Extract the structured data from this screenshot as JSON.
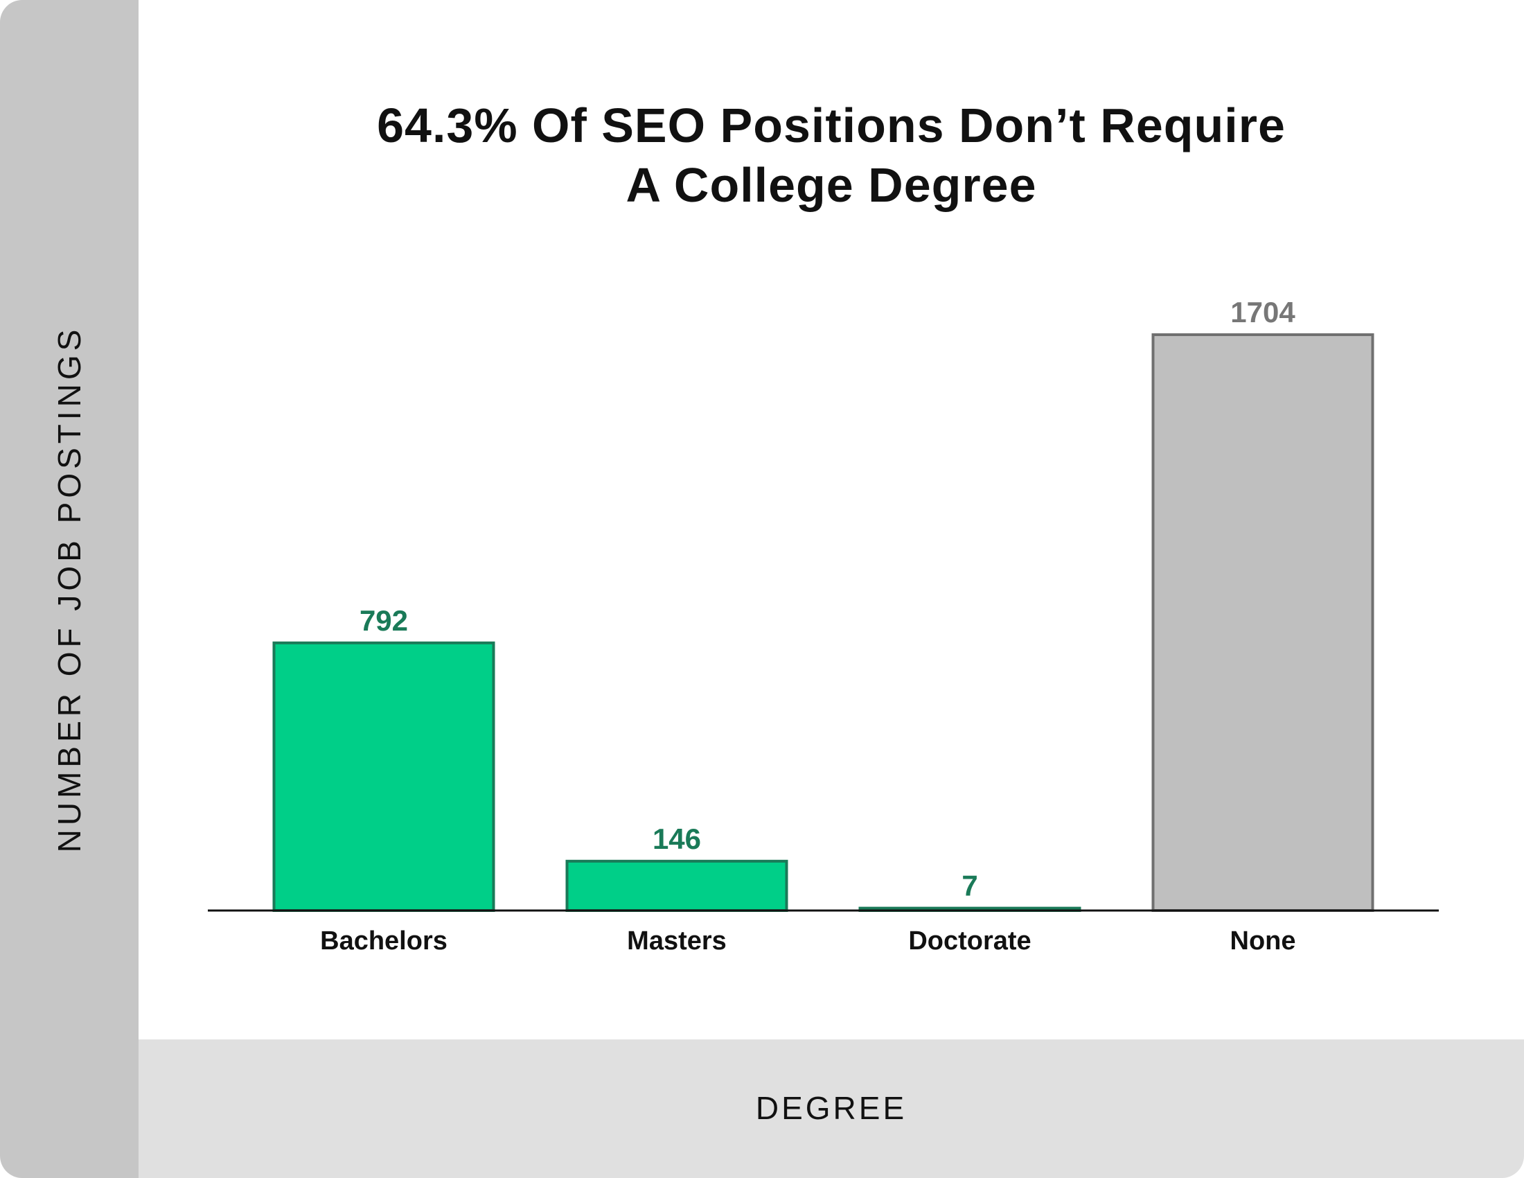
{
  "chart_data": {
    "type": "bar",
    "title_lines": [
      "64.3% Of SEO Positions Don’t Require",
      "A College Degree"
    ],
    "title": "64.3% Of SEO Positions Don’t Require A College Degree",
    "xlabel": "DEGREE",
    "ylabel": "NUMBER OF JOB POSTINGS",
    "categories": [
      "Bachelors",
      "Masters",
      "Doctorate",
      "None"
    ],
    "values": [
      792,
      146,
      7,
      1704
    ],
    "value_labels": [
      "792",
      "146",
      "7",
      "1704"
    ],
    "ylim": [
      0,
      1704
    ],
    "grid": false,
    "bar_colors": [
      "#00cf88",
      "#00cf88",
      "#00cf88",
      "#bfbfbf"
    ],
    "bar_edge_colors": [
      "#1a7a58",
      "#1a7a58",
      "#1a7a58",
      "#707070"
    ],
    "label_colors": [
      "#1a7a58",
      "#1a7a58",
      "#1a7a58",
      "#777777"
    ]
  }
}
